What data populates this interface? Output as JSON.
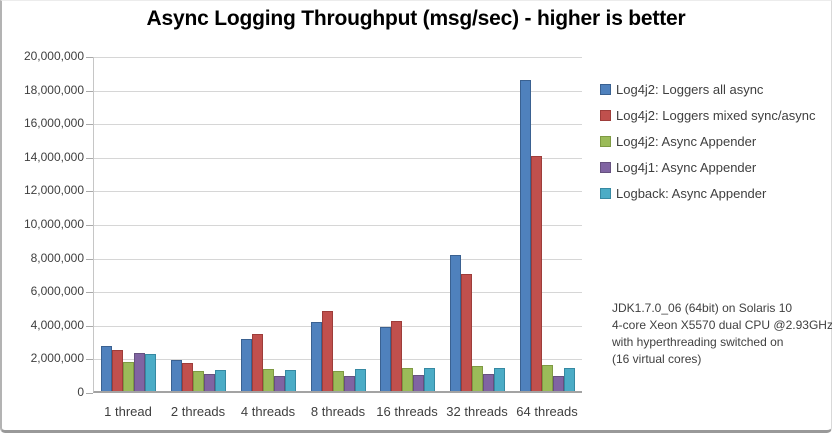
{
  "chart_data": {
    "type": "bar",
    "title": "Async Logging Throughput (msg/sec) - higher is better",
    "categories": [
      "1 thread",
      "2 threads",
      "4 threads",
      "8 threads",
      "16 threads",
      "32 threads",
      "64 threads"
    ],
    "series": [
      {
        "name": "Log4j2: Loggers all async",
        "color": "#4F81BD",
        "border": "#3A6191",
        "values": [
          2650000,
          1820000,
          3110000,
          4130000,
          3830000,
          8120000,
          18500000
        ]
      },
      {
        "name": "Log4j2: Loggers mixed sync/async",
        "color": "#C0504D",
        "border": "#9E3D3A",
        "values": [
          2450000,
          1680000,
          3420000,
          4780000,
          4180000,
          6940000,
          14000000
        ]
      },
      {
        "name": "Log4j2: Async Appender",
        "color": "#9BBB59",
        "border": "#7E9A43",
        "values": [
          1710000,
          1210000,
          1330000,
          1200000,
          1380000,
          1460000,
          1530000
        ]
      },
      {
        "name": "Log4j1: Async Appender",
        "color": "#8064A2",
        "border": "#66517F",
        "values": [
          2240000,
          990000,
          890000,
          870000,
          970000,
          1010000,
          900000
        ]
      },
      {
        "name": "Logback: Async Appender",
        "color": "#4BACC6",
        "border": "#3689A2",
        "values": [
          2210000,
          1250000,
          1230000,
          1280000,
          1370000,
          1390000,
          1360000
        ]
      }
    ],
    "ylim": [
      0,
      20000000
    ],
    "ytick_step": 2000000,
    "ytick_labels": [
      "20,000,000",
      "18,000,000",
      "16,000,000",
      "14,000,000",
      "12,000,000",
      "10,000,000",
      "8,000,000",
      "6,000,000",
      "4,000,000",
      "2,000,000",
      "0"
    ],
    "grid": true,
    "legend_position": "right"
  },
  "annotation": {
    "lines": [
      "JDK1.7.0_06 (64bit) on Solaris 10",
      "4-core Xeon X5570 dual CPU @2.93GHz",
      "with hyperthreading switched on",
      "(16 virtual cores)"
    ]
  }
}
